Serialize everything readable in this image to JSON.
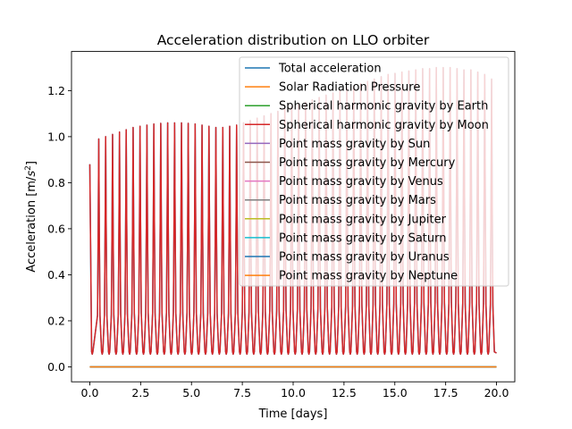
{
  "chart_data": {
    "type": "line",
    "title": "Acceleration distribution on LLO orbiter",
    "xlabel": "Time [days]",
    "ylabel_prefix": "Acceleration [m/",
    "ylabel_base": "s",
    "ylabel_exp": "2",
    "ylabel_suffix": "]",
    "xlim": [
      -0.9,
      20.9
    ],
    "ylim": [
      -0.065,
      1.37
    ],
    "xticks": [
      0.0,
      2.5,
      5.0,
      7.5,
      10.0,
      12.5,
      15.0,
      17.5,
      20.0
    ],
    "xtick_labels": [
      "0.0",
      "2.5",
      "5.0",
      "7.5",
      "10.0",
      "12.5",
      "15.0",
      "17.5",
      "20.0"
    ],
    "yticks": [
      0.0,
      0.2,
      0.4,
      0.6,
      0.8,
      1.0,
      1.2
    ],
    "ytick_labels": [
      "0.0",
      "0.2",
      "0.4",
      "0.6",
      "0.8",
      "1.0",
      "1.2"
    ],
    "grid": false,
    "legend_position": "top-right",
    "oscillation": {
      "period_days": 0.3385,
      "trough_value": 0.055,
      "initial_value": 0.88,
      "peak_times": [
        0.44,
        0.78,
        1.12,
        1.46,
        1.79,
        2.13,
        2.47,
        2.81,
        3.15,
        3.49,
        3.83,
        4.17,
        4.51,
        4.84,
        5.18,
        5.52,
        5.86,
        6.2,
        6.54,
        6.88,
        7.22,
        7.56,
        7.89,
        8.23,
        8.57,
        8.91,
        9.25,
        9.59,
        9.93,
        10.27,
        10.61,
        10.94,
        11.28,
        11.62,
        11.96,
        12.3,
        12.64,
        12.98,
        13.32,
        13.66,
        13.99,
        14.33,
        14.67,
        15.01,
        15.35,
        15.69,
        16.03,
        16.37,
        16.71,
        17.04,
        17.38,
        17.72,
        18.06,
        18.4,
        18.74,
        19.08,
        19.42,
        19.76
      ],
      "peak_values": [
        0.99,
        1.0,
        1.01,
        1.02,
        1.03,
        1.04,
        1.045,
        1.05,
        1.055,
        1.058,
        1.06,
        1.06,
        1.06,
        1.058,
        1.055,
        1.05,
        1.045,
        1.04,
        1.04,
        1.045,
        1.05,
        1.06,
        1.07,
        1.08,
        1.09,
        1.1,
        1.11,
        1.12,
        1.13,
        1.14,
        1.15,
        1.16,
        1.17,
        1.18,
        1.19,
        1.2,
        1.21,
        1.22,
        1.23,
        1.24,
        1.25,
        1.26,
        1.27,
        1.275,
        1.28,
        1.285,
        1.29,
        1.295,
        1.295,
        1.3,
        1.3,
        1.3,
        1.295,
        1.29,
        1.29,
        1.28,
        1.27,
        1.25
      ],
      "end_time": 20.0,
      "end_value": 0.06
    },
    "series": [
      {
        "name": "Total acceleration",
        "color": "#1f77b4",
        "kind": "oscillating"
      },
      {
        "name": "Solar Radiation Pressure",
        "color": "#ff7f0e",
        "kind": "zero"
      },
      {
        "name": "Spherical harmonic gravity by Earth",
        "color": "#2ca02c",
        "kind": "zero"
      },
      {
        "name": "Spherical harmonic gravity by Moon",
        "color": "#d62728",
        "kind": "oscillating"
      },
      {
        "name": "Point mass gravity by Sun",
        "color": "#9467bd",
        "kind": "zero"
      },
      {
        "name": "Point mass gravity by Mercury",
        "color": "#8c564b",
        "kind": "zero"
      },
      {
        "name": "Point mass gravity by Venus",
        "color": "#e377c2",
        "kind": "zero"
      },
      {
        "name": "Point mass gravity by Mars",
        "color": "#7f7f7f",
        "kind": "zero"
      },
      {
        "name": "Point mass gravity by Jupiter",
        "color": "#bcbd22",
        "kind": "zero"
      },
      {
        "name": "Point mass gravity by Saturn",
        "color": "#17becf",
        "kind": "zero"
      },
      {
        "name": "Point mass gravity by Uranus",
        "color": "#1f77b4",
        "kind": "zero"
      },
      {
        "name": "Point mass gravity by Neptune",
        "color": "#ff7f0e",
        "kind": "zero"
      }
    ]
  }
}
